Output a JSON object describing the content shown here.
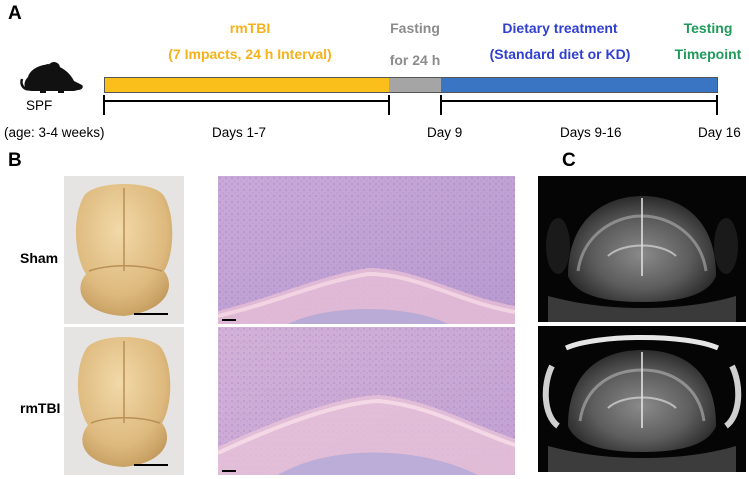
{
  "panels": {
    "a": "A",
    "b": "B",
    "c": "C"
  },
  "timeline": {
    "subject": {
      "label": "SPF",
      "age": "(age: 3-4 weeks)",
      "icon": "mouse-icon"
    },
    "phases": [
      {
        "line1": "rmTBI",
        "line2": "(7 Impacts, 24 h Interval)",
        "color": "#f5b21b"
      },
      {
        "line1": "Fasting",
        "line2": "for 24 h",
        "color": "#8c8c8c"
      },
      {
        "line1": "Dietary treatment",
        "line2": "(Standard diet or KD)",
        "color": "#2f3fd1"
      },
      {
        "line1": "Testing",
        "line2": "Timepoint",
        "color": "#1f9a5a"
      }
    ],
    "bar_colors": {
      "rmtbi": "#fbbf1c",
      "fasting": "#a5a5a5",
      "diet": "#3a75c4"
    },
    "day_labels": {
      "start_range": "Days 1-7",
      "day9": "Day 9",
      "range2": "Days 9-16",
      "day16": "Day 16"
    }
  },
  "panel_b": {
    "rows": [
      "Sham",
      "rmTBI"
    ]
  }
}
